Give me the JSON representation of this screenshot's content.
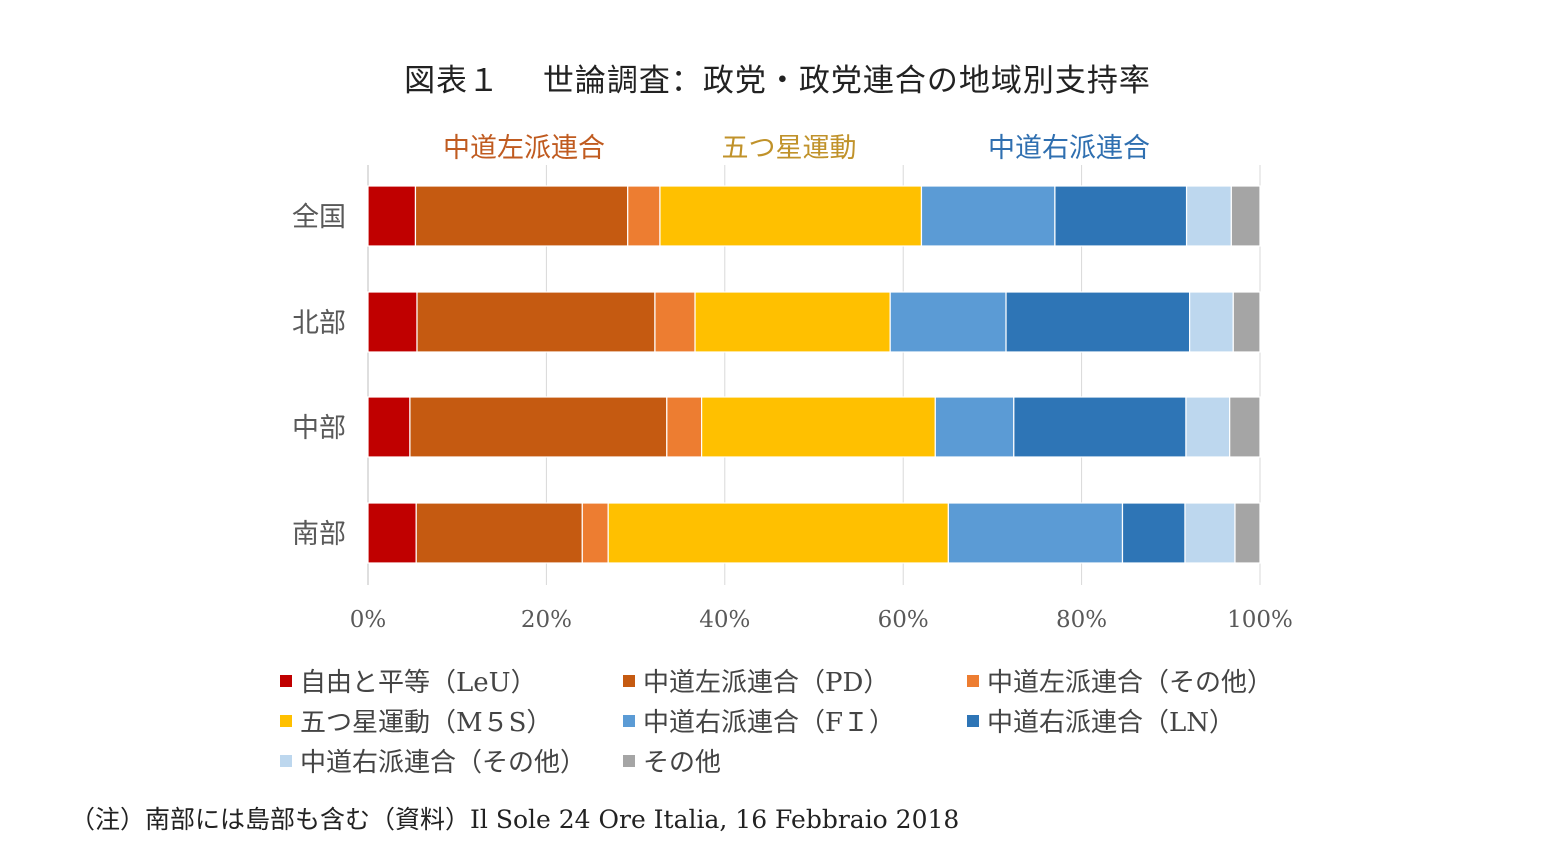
{
  "chart_data": {
    "type": "bar",
    "orientation": "horizontal",
    "stacked": "percent",
    "title": "図表１　 世論調査：政党・政党連合の地域別支持率",
    "group_labels": [
      {
        "label": "中道左派連合",
        "color": "#C05B20"
      },
      {
        "label": "五つ星運動",
        "color": "#C0922A"
      },
      {
        "label": "中道右派連合",
        "color": "#2F6FB0"
      }
    ],
    "categories": [
      "全国",
      "北部",
      "中部",
      "南部"
    ],
    "series": [
      {
        "name": "自由と平等（LeU）",
        "color": "#C00000",
        "values": [
          5.3,
          5.5,
          4.7,
          5.4
        ]
      },
      {
        "name": "中道左派連合（PD）",
        "color": "#C55A11",
        "values": [
          23.7,
          26.7,
          28.8,
          18.6
        ]
      },
      {
        "name": "中道左派連合（その他）",
        "color": "#ED7D31",
        "values": [
          3.6,
          4.5,
          3.9,
          2.9
        ]
      },
      {
        "name": "五つ星運動（M５S）",
        "color": "#FFC000",
        "values": [
          29.2,
          21.9,
          26.2,
          38.1
        ]
      },
      {
        "name": "中道右派連合（FＩ）",
        "color": "#5B9BD5",
        "values": [
          14.9,
          13.0,
          8.8,
          19.5
        ]
      },
      {
        "name": "中道右派連合（LN）",
        "color": "#2E75B6",
        "values": [
          14.7,
          20.6,
          19.3,
          7.0
        ]
      },
      {
        "name": "中道右派連合（その他）",
        "color": "#BDD7EE",
        "values": [
          5.0,
          4.9,
          4.9,
          5.6
        ]
      },
      {
        "name": "その他",
        "color": "#A5A5A5",
        "values": [
          3.2,
          3.0,
          3.4,
          2.8
        ]
      }
    ],
    "xlim": [
      0,
      100
    ],
    "xticks": [
      "0%",
      "20%",
      "40%",
      "60%",
      "80%",
      "100%"
    ],
    "grid": true,
    "legend_position": "bottom"
  },
  "note": "（注）南部には島部も含む（資料）Il Sole 24 Ore Italia, 16 Febbraio 2018"
}
